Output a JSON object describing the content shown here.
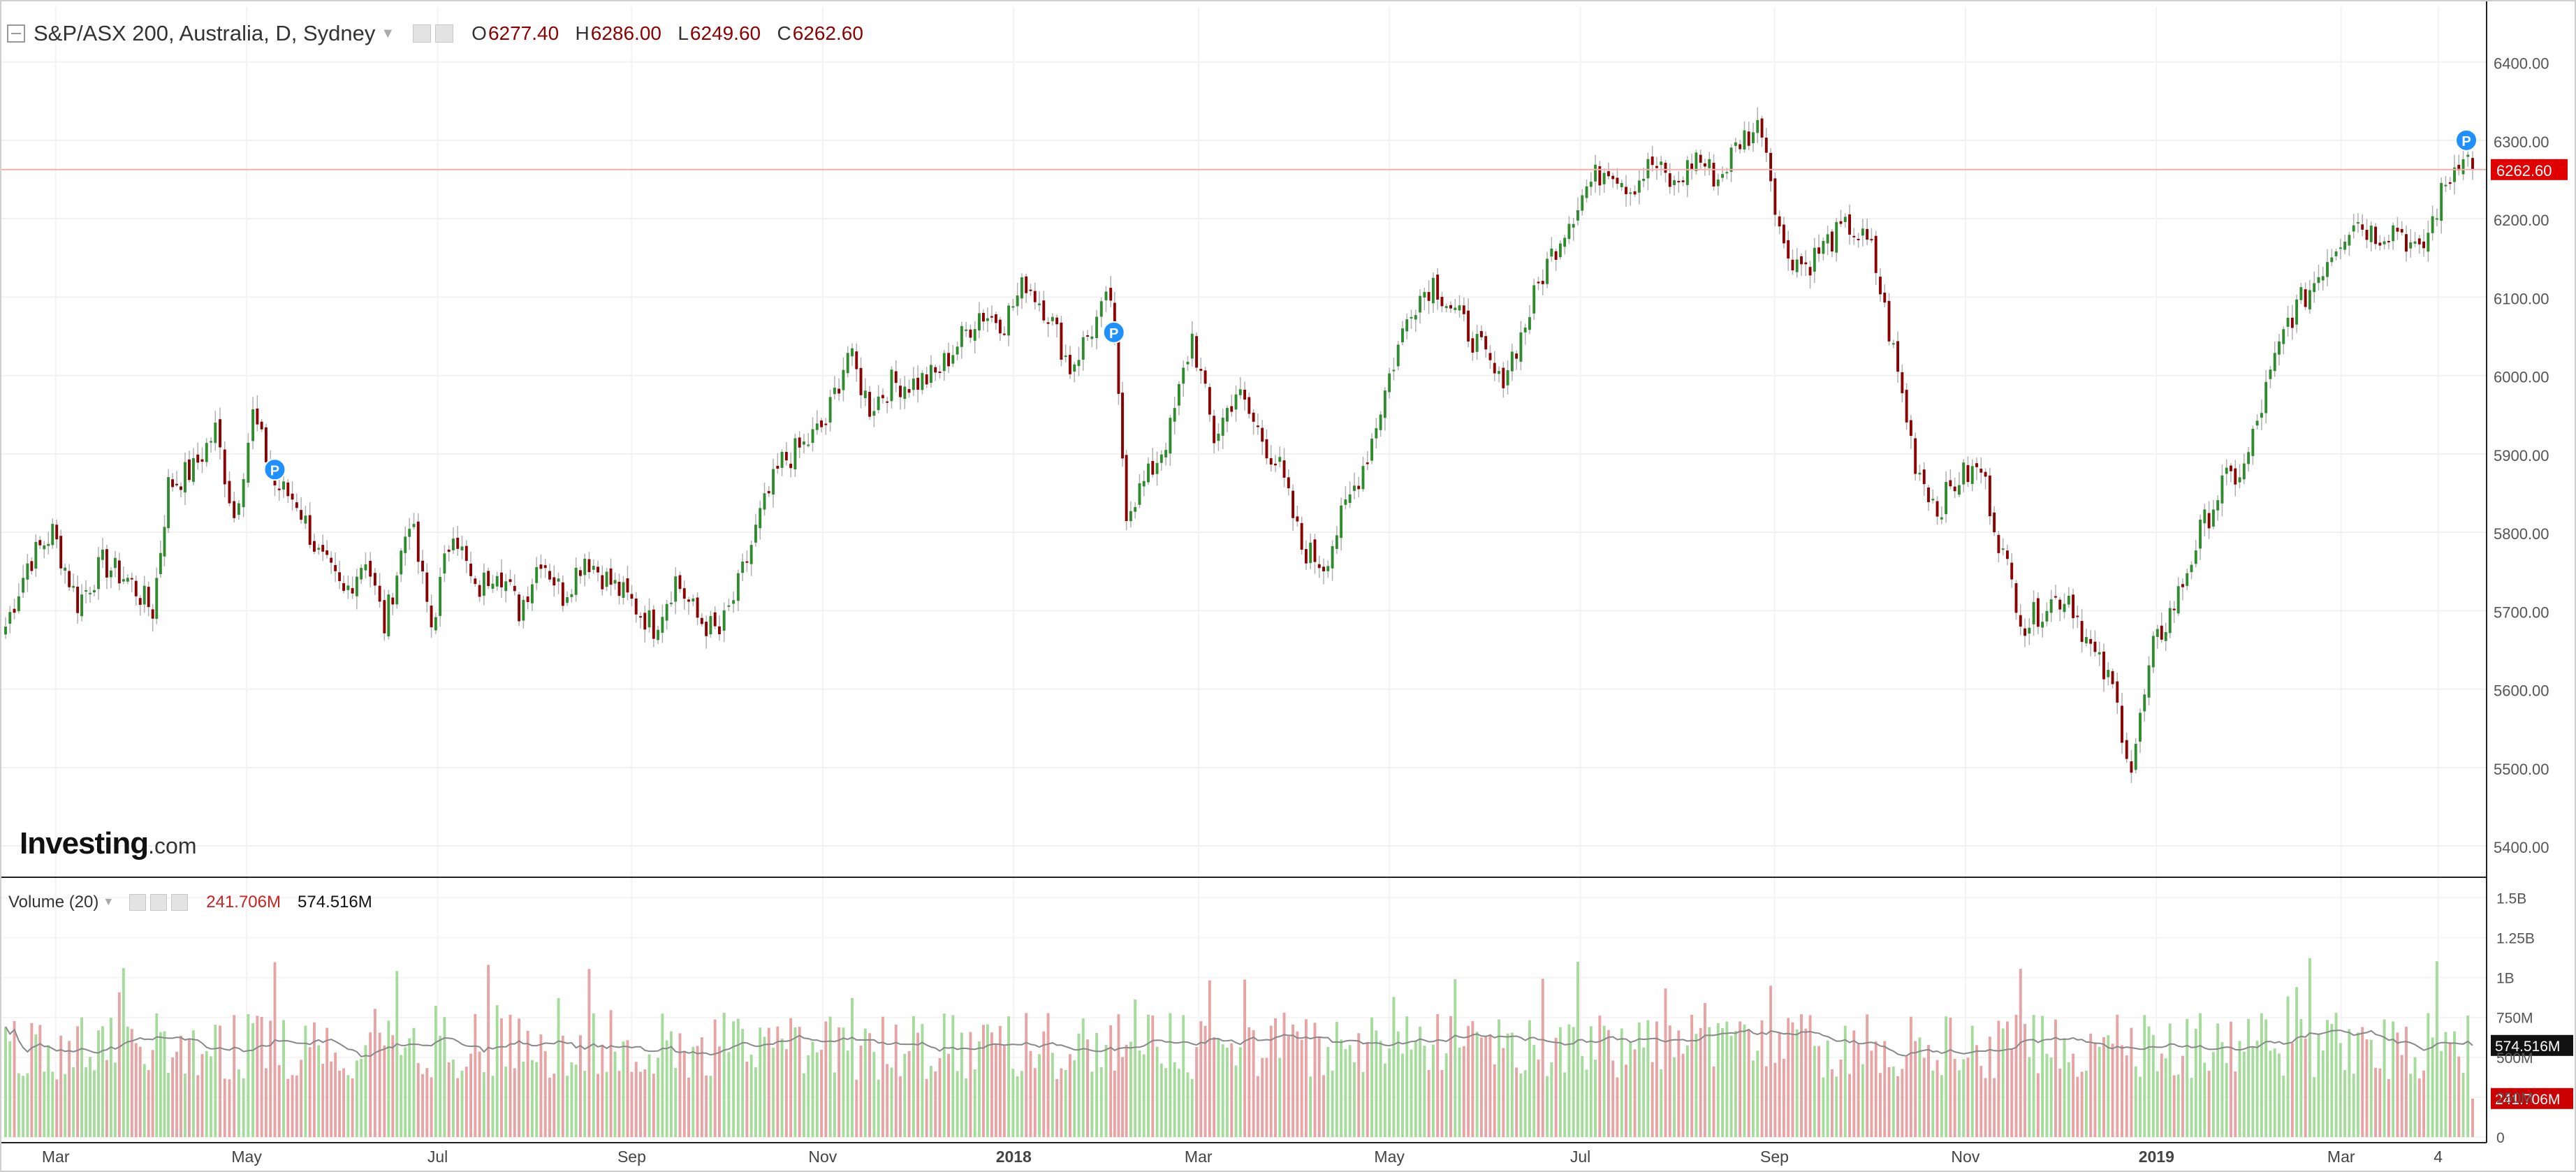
{
  "header": {
    "symbol": "S&P/ASX 200, Australia, D, Sydney",
    "open_label": "O",
    "open": "6277.40",
    "high_label": "H",
    "high": "6286.00",
    "low_label": "L",
    "low": "6249.60",
    "close_label": "C",
    "close": "6262.60"
  },
  "volume_panel": {
    "title": "Volume (20)",
    "value": "241.706M",
    "ma_value": "574.516M"
  },
  "logo": {
    "main": "Investing",
    "suffix": ".com"
  },
  "colors": {
    "up": "#2e8b2e",
    "down": "#8b0000",
    "vol_up": "#a5dc9c",
    "vol_down": "#e8a4a4",
    "last_price": "#e00000",
    "ma_line": "#888888"
  },
  "markers": [
    {
      "icon": "p-marker-icon",
      "label": "P",
      "date": "2017-05-10",
      "price": 5880
    },
    {
      "icon": "p-marker-icon",
      "label": "P",
      "date": "2018-02-02",
      "price": 6055
    },
    {
      "icon": "p-marker-icon",
      "label": "P",
      "date": "2019-04-10",
      "price": 6300
    }
  ],
  "chart_data": {
    "type": "candlestick",
    "title": "S&P/ASX 200, Australia, D, Sydney",
    "last_price": 6262.6,
    "y_axis": {
      "ticks": [
        "5400.00",
        "5500.00",
        "5600.00",
        "5700.00",
        "5800.00",
        "5900.00",
        "6000.00",
        "6100.00",
        "6200.00",
        "6300.00",
        "6400.00"
      ],
      "range": [
        5360,
        6470
      ]
    },
    "volume_axis": {
      "ticks": [
        "0",
        "250M",
        "500M",
        "750M",
        "1B",
        "1.25B",
        "1.5B"
      ],
      "range": [
        0,
        1.55
      ]
    },
    "x_axis": {
      "start": "2017-02-13",
      "end": "2019-04-12",
      "ticks": [
        {
          "label": "Mar",
          "date": "2017-03-01"
        },
        {
          "label": "May",
          "date": "2017-05-01"
        },
        {
          "label": "Jul",
          "date": "2017-07-01"
        },
        {
          "label": "Sep",
          "date": "2017-09-01"
        },
        {
          "label": "Nov",
          "date": "2017-11-01"
        },
        {
          "label": "2018",
          "date": "2018-01-01",
          "bold": true
        },
        {
          "label": "Mar",
          "date": "2018-03-01"
        },
        {
          "label": "May",
          "date": "2018-05-01"
        },
        {
          "label": "Jul",
          "date": "2018-07-01"
        },
        {
          "label": "Sep",
          "date": "2018-09-01"
        },
        {
          "label": "Nov",
          "date": "2018-11-01"
        },
        {
          "label": "2019",
          "date": "2019-01-01",
          "bold": true
        },
        {
          "label": "Mar",
          "date": "2019-03-01"
        },
        {
          "label": "4",
          "date": "2019-04-01"
        }
      ]
    },
    "series": [
      {
        "date": "2017-02-13",
        "close": 5680
      },
      {
        "date": "2017-02-20",
        "close": 5760
      },
      {
        "date": "2017-02-28",
        "close": 5800
      },
      {
        "date": "2017-03-08",
        "close": 5710
      },
      {
        "date": "2017-03-16",
        "close": 5760
      },
      {
        "date": "2017-03-24",
        "close": 5740
      },
      {
        "date": "2017-04-01",
        "close": 5700
      },
      {
        "date": "2017-04-06",
        "close": 5860
      },
      {
        "date": "2017-04-14",
        "close": 5880
      },
      {
        "date": "2017-04-21",
        "close": 5930
      },
      {
        "date": "2017-04-27",
        "close": 5820
      },
      {
        "date": "2017-05-03",
        "close": 5950
      },
      {
        "date": "2017-05-10",
        "close": 5860
      },
      {
        "date": "2017-05-17",
        "close": 5840
      },
      {
        "date": "2017-05-24",
        "close": 5770
      },
      {
        "date": "2017-06-01",
        "close": 5720
      },
      {
        "date": "2017-06-08",
        "close": 5770
      },
      {
        "date": "2017-06-14",
        "close": 5680
      },
      {
        "date": "2017-06-22",
        "close": 5820
      },
      {
        "date": "2017-06-29",
        "close": 5680
      },
      {
        "date": "2017-07-06",
        "close": 5810
      },
      {
        "date": "2017-07-13",
        "close": 5720
      },
      {
        "date": "2017-07-20",
        "close": 5760
      },
      {
        "date": "2017-07-27",
        "close": 5700
      },
      {
        "date": "2017-08-03",
        "close": 5770
      },
      {
        "date": "2017-08-10",
        "close": 5720
      },
      {
        "date": "2017-08-17",
        "close": 5770
      },
      {
        "date": "2017-08-24",
        "close": 5740
      },
      {
        "date": "2017-09-01",
        "close": 5710
      },
      {
        "date": "2017-09-08",
        "close": 5680
      },
      {
        "date": "2017-09-15",
        "close": 5740
      },
      {
        "date": "2017-09-22",
        "close": 5690
      },
      {
        "date": "2017-09-29",
        "close": 5670
      },
      {
        "date": "2017-10-05",
        "close": 5730
      },
      {
        "date": "2017-10-12",
        "close": 5820
      },
      {
        "date": "2017-10-19",
        "close": 5890
      },
      {
        "date": "2017-10-26",
        "close": 5910
      },
      {
        "date": "2017-11-02",
        "close": 5940
      },
      {
        "date": "2017-11-09",
        "close": 6030
      },
      {
        "date": "2017-11-16",
        "close": 5960
      },
      {
        "date": "2017-11-23",
        "close": 5990
      },
      {
        "date": "2017-11-30",
        "close": 5990
      },
      {
        "date": "2017-12-07",
        "close": 6000
      },
      {
        "date": "2017-12-14",
        "close": 6040
      },
      {
        "date": "2017-12-21",
        "close": 6080
      },
      {
        "date": "2017-12-29",
        "close": 6070
      },
      {
        "date": "2018-01-05",
        "close": 6120
      },
      {
        "date": "2018-01-12",
        "close": 6080
      },
      {
        "date": "2018-01-19",
        "close": 6010
      },
      {
        "date": "2018-01-26",
        "close": 6060
      },
      {
        "date": "2018-02-01",
        "close": 6100
      },
      {
        "date": "2018-02-06",
        "close": 5830
      },
      {
        "date": "2018-02-13",
        "close": 5870
      },
      {
        "date": "2018-02-20",
        "close": 5930
      },
      {
        "date": "2018-02-27",
        "close": 6050
      },
      {
        "date": "2018-03-06",
        "close": 5920
      },
      {
        "date": "2018-03-13",
        "close": 5980
      },
      {
        "date": "2018-03-20",
        "close": 5930
      },
      {
        "date": "2018-03-27",
        "close": 5880
      },
      {
        "date": "2018-04-03",
        "close": 5780
      },
      {
        "date": "2018-04-10",
        "close": 5760
      },
      {
        "date": "2018-04-17",
        "close": 5830
      },
      {
        "date": "2018-04-24",
        "close": 5900
      },
      {
        "date": "2018-05-01",
        "close": 6000
      },
      {
        "date": "2018-05-08",
        "close": 6090
      },
      {
        "date": "2018-05-15",
        "close": 6120
      },
      {
        "date": "2018-05-22",
        "close": 6080
      },
      {
        "date": "2018-05-29",
        "close": 6040
      },
      {
        "date": "2018-06-05",
        "close": 5990
      },
      {
        "date": "2018-06-12",
        "close": 6050
      },
      {
        "date": "2018-06-19",
        "close": 6130
      },
      {
        "date": "2018-06-26",
        "close": 6190
      },
      {
        "date": "2018-07-03",
        "close": 6240
      },
      {
        "date": "2018-07-10",
        "close": 6270
      },
      {
        "date": "2018-07-17",
        "close": 6240
      },
      {
        "date": "2018-07-24",
        "close": 6270
      },
      {
        "date": "2018-07-31",
        "close": 6240
      },
      {
        "date": "2018-08-07",
        "close": 6280
      },
      {
        "date": "2018-08-14",
        "close": 6250
      },
      {
        "date": "2018-08-21",
        "close": 6300
      },
      {
        "date": "2018-08-28",
        "close": 6320
      },
      {
        "date": "2018-09-04",
        "close": 6160
      },
      {
        "date": "2018-09-11",
        "close": 6140
      },
      {
        "date": "2018-09-18",
        "close": 6170
      },
      {
        "date": "2018-09-25",
        "close": 6190
      },
      {
        "date": "2018-10-02",
        "close": 6160
      },
      {
        "date": "2018-10-09",
        "close": 6030
      },
      {
        "date": "2018-10-16",
        "close": 5890
      },
      {
        "date": "2018-10-23",
        "close": 5830
      },
      {
        "date": "2018-10-30",
        "close": 5870
      },
      {
        "date": "2018-11-06",
        "close": 5880
      },
      {
        "date": "2018-11-13",
        "close": 5770
      },
      {
        "date": "2018-11-20",
        "close": 5680
      },
      {
        "date": "2018-11-27",
        "close": 5710
      },
      {
        "date": "2018-12-04",
        "close": 5720
      },
      {
        "date": "2018-12-11",
        "close": 5650
      },
      {
        "date": "2018-12-18",
        "close": 5600
      },
      {
        "date": "2018-12-24",
        "close": 5500
      },
      {
        "date": "2018-12-31",
        "close": 5650
      },
      {
        "date": "2019-01-08",
        "close": 5720
      },
      {
        "date": "2019-01-15",
        "close": 5800
      },
      {
        "date": "2019-01-22",
        "close": 5860
      },
      {
        "date": "2019-01-29",
        "close": 5880
      },
      {
        "date": "2019-02-05",
        "close": 5980
      },
      {
        "date": "2019-02-12",
        "close": 6070
      },
      {
        "date": "2019-02-19",
        "close": 6110
      },
      {
        "date": "2019-02-26",
        "close": 6160
      },
      {
        "date": "2019-03-05",
        "close": 6200
      },
      {
        "date": "2019-03-12",
        "close": 6180
      },
      {
        "date": "2019-03-19",
        "close": 6190
      },
      {
        "date": "2019-03-26",
        "close": 6150
      },
      {
        "date": "2019-04-02",
        "close": 6230
      },
      {
        "date": "2019-04-09",
        "close": 6290
      },
      {
        "date": "2019-04-12",
        "close": 6262.6
      }
    ]
  }
}
